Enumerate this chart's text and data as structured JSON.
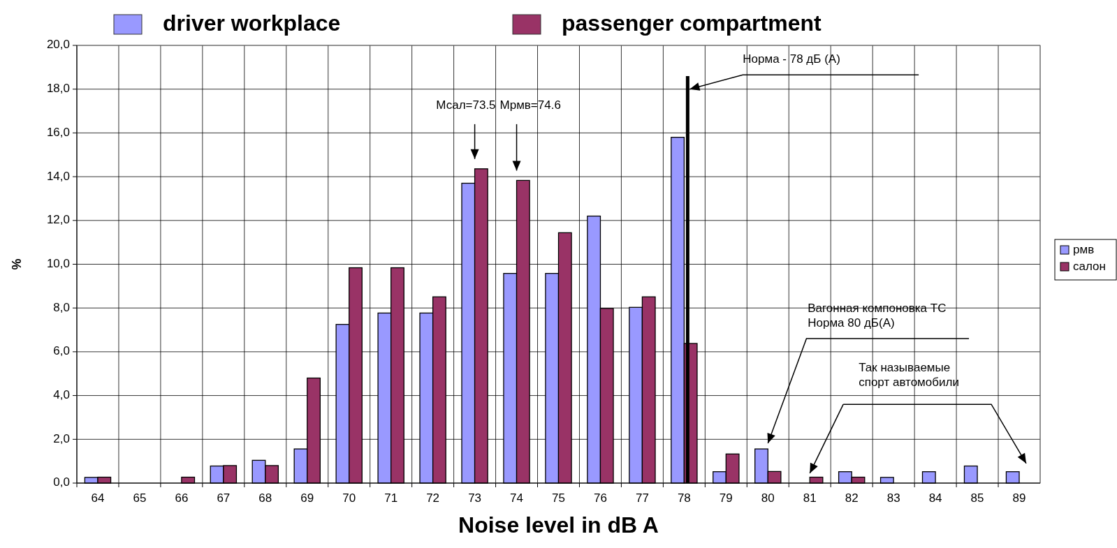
{
  "chart_data": {
    "type": "bar",
    "xlabel": "Noise level in dB A",
    "ylabel": "%",
    "categories": [
      "64",
      "65",
      "66",
      "67",
      "68",
      "69",
      "70",
      "71",
      "72",
      "73",
      "74",
      "75",
      "76",
      "77",
      "78",
      "79",
      "80",
      "81",
      "82",
      "83",
      "84",
      "85",
      "89"
    ],
    "series": [
      {
        "name": "рмв",
        "color": "#9999ff",
        "values": [
          0.26,
          0,
          0,
          0.78,
          1.04,
          1.56,
          7.25,
          7.77,
          7.77,
          13.7,
          9.58,
          9.58,
          12.2,
          8.03,
          15.8,
          0.52,
          1.56,
          0,
          0.52,
          0.26,
          0.52,
          0.78,
          0.52
        ]
      },
      {
        "name": "салон",
        "color": "#993366",
        "values": [
          0.27,
          0,
          0.27,
          0.8,
          0.8,
          4.8,
          9.84,
          9.84,
          8.51,
          14.36,
          13.83,
          11.44,
          7.98,
          8.51,
          6.38,
          1.33,
          0.53,
          0.27,
          0.27,
          0,
          0,
          0,
          0
        ]
      }
    ],
    "ylim": [
      0,
      20
    ],
    "yticks": [
      {
        "value": 0,
        "label": "0,0"
      },
      {
        "value": 2,
        "label": "2,0"
      },
      {
        "value": 4,
        "label": "4,0"
      },
      {
        "value": 6,
        "label": "6,0"
      },
      {
        "value": 8,
        "label": "8,0"
      },
      {
        "value": 10,
        "label": "10,0"
      },
      {
        "value": 12,
        "label": "12,0"
      },
      {
        "value": 14,
        "label": "14,0"
      },
      {
        "value": 16,
        "label": "16,0"
      },
      {
        "value": 18,
        "label": "18,0"
      },
      {
        "value": 20,
        "label": "20,0"
      }
    ],
    "grid": true,
    "legend": "right",
    "ref_lines": [
      {
        "axis": "x",
        "value": "78",
        "label": "Норма - 78 дБ (A)",
        "color": "#000000"
      }
    ],
    "annotations": [
      "driver workplace",
      "passenger compartment",
      "Мсал=73.5",
      "Мрмв=74.6",
      "Вагонная компоновка ТС\nНорма 80  дБ(A)",
      "Так называемые\nспорт автомобили"
    ]
  }
}
